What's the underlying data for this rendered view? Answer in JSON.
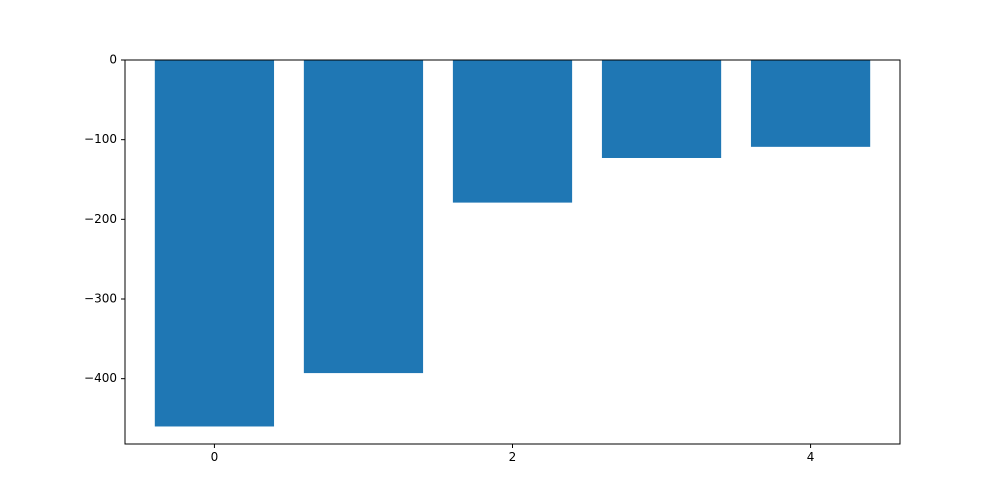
{
  "chart_data": {
    "type": "bar",
    "x": [
      0,
      1,
      2,
      3,
      4
    ],
    "values": [
      -460,
      -393,
      -179,
      -123,
      -109
    ],
    "xlim": [
      -0.6,
      4.6
    ],
    "ylim": [
      -482,
      0
    ],
    "xticks": [
      0,
      2,
      4
    ],
    "xtick_labels": [
      "0",
      "2",
      "4"
    ],
    "yticks": [
      0,
      -100,
      -200,
      -300,
      -400
    ],
    "ytick_labels": [
      "0",
      "−100",
      "−200",
      "−300",
      "−400"
    ],
    "bar_color": "#1f77b4",
    "grid": false,
    "title": "",
    "xlabel": "",
    "ylabel": ""
  }
}
